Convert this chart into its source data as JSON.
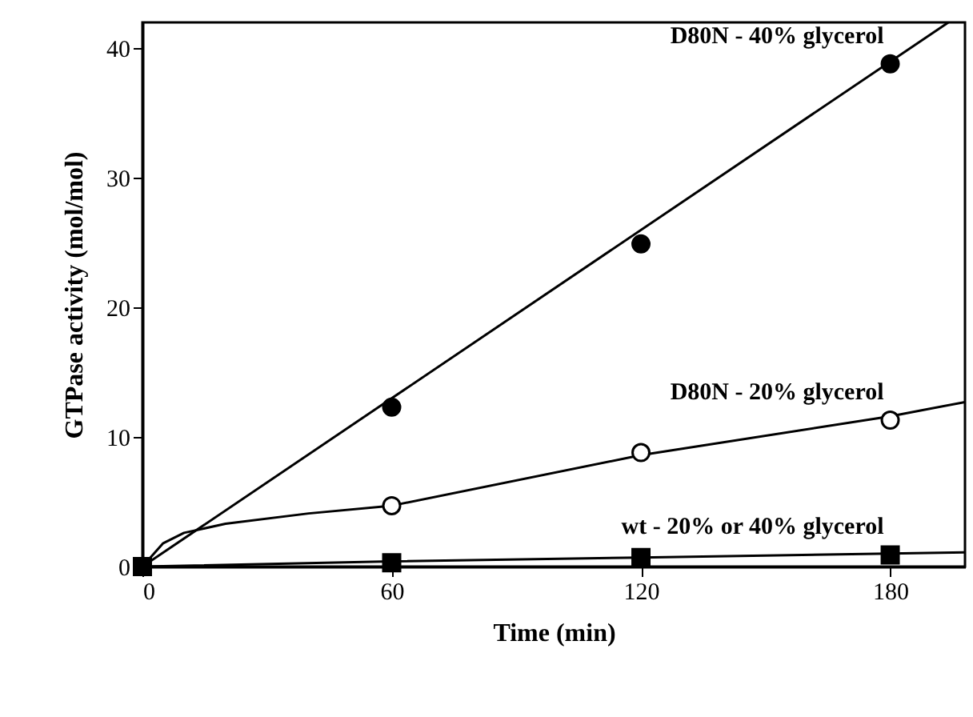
{
  "chart_data": {
    "type": "scatter",
    "xlabel": "Time (min)",
    "ylabel": "GTPase activity (mol/mol)",
    "xlim": [
      0,
      198
    ],
    "ylim": [
      0,
      42
    ],
    "xticks": [
      0,
      60,
      120,
      180
    ],
    "yticks": [
      0,
      10,
      20,
      30,
      40
    ],
    "grid": false,
    "series": [
      {
        "type": "line",
        "color": "#000000",
        "x": [
          0,
          194
        ],
        "values": [
          0,
          42
        ],
        "line_style": "solid"
      },
      {
        "type": "line",
        "color": "#000000",
        "x": [
          0,
          5,
          10,
          20,
          40,
          60,
          120,
          180,
          198
        ],
        "values": [
          0,
          1.8,
          2.6,
          3.3,
          4.1,
          4.7,
          8.6,
          11.6,
          12.7
        ],
        "line_style": "solid"
      },
      {
        "type": "line",
        "color": "#000000",
        "x": [
          0,
          60,
          120,
          180,
          198
        ],
        "values": [
          0,
          0.4,
          0.7,
          1.0,
          1.1
        ],
        "line_style": "solid"
      },
      {
        "name": "D80N - 40% glycerol",
        "color": "#000000",
        "marker": "circle",
        "x": [
          60,
          120,
          180
        ],
        "values": [
          12.3,
          24.9,
          38.8
        ]
      },
      {
        "name": "D80N - 20% glycerol",
        "color": "#ffffff",
        "marker": "circle",
        "x": [
          60,
          120,
          180
        ],
        "values": [
          4.7,
          8.8,
          11.3
        ]
      },
      {
        "name": "wt - 20% or 40% glycerol",
        "color": "#000000",
        "marker": "square",
        "x": [
          0,
          60,
          120,
          180
        ],
        "values": [
          0,
          0.3,
          0.7,
          0.9
        ]
      }
    ]
  }
}
